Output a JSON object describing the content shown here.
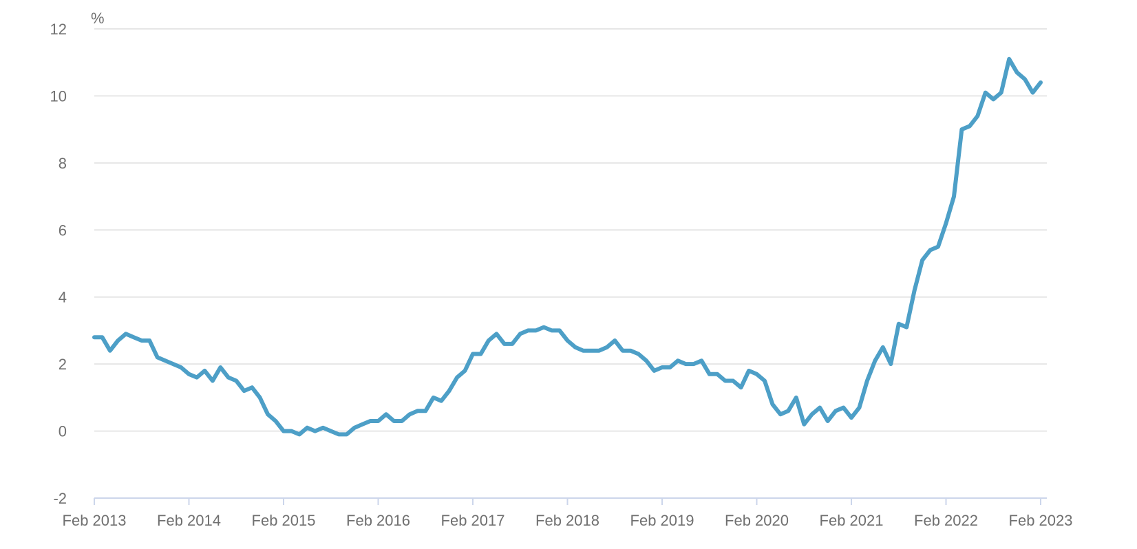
{
  "chart_data": {
    "type": "line",
    "ylabel": "%",
    "ylim": [
      -2,
      12
    ],
    "y_ticks": [
      -2,
      0,
      2,
      4,
      6,
      8,
      10,
      12
    ],
    "x_tick_labels": [
      "Feb 2013",
      "Feb 2014",
      "Feb 2015",
      "Feb 2016",
      "Feb 2017",
      "Feb 2018",
      "Feb 2019",
      "Feb 2020",
      "Feb 2021",
      "Feb 2022",
      "Feb 2023"
    ],
    "x_start": "2013-02",
    "x_end": "2023-02",
    "grid": true,
    "legend": "none",
    "line_color": "#4d9fc7",
    "series": [
      {
        "x": [
          "2013-02",
          "2013-03",
          "2013-04",
          "2013-05",
          "2013-06",
          "2013-07",
          "2013-08",
          "2013-09",
          "2013-10",
          "2013-11",
          "2013-12",
          "2014-01",
          "2014-02",
          "2014-03",
          "2014-04",
          "2014-05",
          "2014-06",
          "2014-07",
          "2014-08",
          "2014-09",
          "2014-10",
          "2014-11",
          "2014-12",
          "2015-01",
          "2015-02",
          "2015-03",
          "2015-04",
          "2015-05",
          "2015-06",
          "2015-07",
          "2015-08",
          "2015-09",
          "2015-10",
          "2015-11",
          "2015-12",
          "2016-01",
          "2016-02",
          "2016-03",
          "2016-04",
          "2016-05",
          "2016-06",
          "2016-07",
          "2016-08",
          "2016-09",
          "2016-10",
          "2016-11",
          "2016-12",
          "2017-01",
          "2017-02",
          "2017-03",
          "2017-04",
          "2017-05",
          "2017-06",
          "2017-07",
          "2017-08",
          "2017-09",
          "2017-10",
          "2017-11",
          "2017-12",
          "2018-01",
          "2018-02",
          "2018-03",
          "2018-04",
          "2018-05",
          "2018-06",
          "2018-07",
          "2018-08",
          "2018-09",
          "2018-10",
          "2018-11",
          "2018-12",
          "2019-01",
          "2019-02",
          "2019-03",
          "2019-04",
          "2019-05",
          "2019-06",
          "2019-07",
          "2019-08",
          "2019-09",
          "2019-10",
          "2019-11",
          "2019-12",
          "2020-01",
          "2020-02",
          "2020-03",
          "2020-04",
          "2020-05",
          "2020-06",
          "2020-07",
          "2020-08",
          "2020-09",
          "2020-10",
          "2020-11",
          "2020-12",
          "2021-01",
          "2021-02",
          "2021-03",
          "2021-04",
          "2021-05",
          "2021-06",
          "2021-07",
          "2021-08",
          "2021-09",
          "2021-10",
          "2021-11",
          "2021-12",
          "2022-01",
          "2022-02",
          "2022-03",
          "2022-04",
          "2022-05",
          "2022-06",
          "2022-07",
          "2022-08",
          "2022-09",
          "2022-10",
          "2022-11",
          "2022-12",
          "2023-01",
          "2023-02"
        ],
        "values": [
          2.8,
          2.8,
          2.4,
          2.7,
          2.9,
          2.8,
          2.7,
          2.7,
          2.2,
          2.1,
          2.0,
          1.9,
          1.7,
          1.6,
          1.8,
          1.5,
          1.9,
          1.6,
          1.5,
          1.2,
          1.3,
          1.0,
          0.5,
          0.3,
          0.0,
          0.0,
          -0.1,
          0.1,
          0.0,
          0.1,
          0.0,
          -0.1,
          -0.1,
          0.1,
          0.2,
          0.3,
          0.3,
          0.5,
          0.3,
          0.3,
          0.5,
          0.6,
          0.6,
          1.0,
          0.9,
          1.2,
          1.6,
          1.8,
          2.3,
          2.3,
          2.7,
          2.9,
          2.6,
          2.6,
          2.9,
          3.0,
          3.0,
          3.1,
          3.0,
          3.0,
          2.7,
          2.5,
          2.4,
          2.4,
          2.4,
          2.5,
          2.7,
          2.4,
          2.4,
          2.3,
          2.1,
          1.8,
          1.9,
          1.9,
          2.1,
          2.0,
          2.0,
          2.1,
          1.7,
          1.7,
          1.5,
          1.5,
          1.3,
          1.8,
          1.7,
          1.5,
          0.8,
          0.5,
          0.6,
          1.0,
          0.2,
          0.5,
          0.7,
          0.3,
          0.6,
          0.7,
          0.4,
          0.7,
          1.5,
          2.1,
          2.5,
          2.0,
          3.2,
          3.1,
          4.2,
          5.1,
          5.4,
          5.5,
          6.2,
          7.0,
          9.0,
          9.1,
          9.4,
          10.1,
          9.9,
          10.1,
          11.1,
          10.7,
          10.5,
          10.1,
          10.4
        ]
      }
    ]
  }
}
